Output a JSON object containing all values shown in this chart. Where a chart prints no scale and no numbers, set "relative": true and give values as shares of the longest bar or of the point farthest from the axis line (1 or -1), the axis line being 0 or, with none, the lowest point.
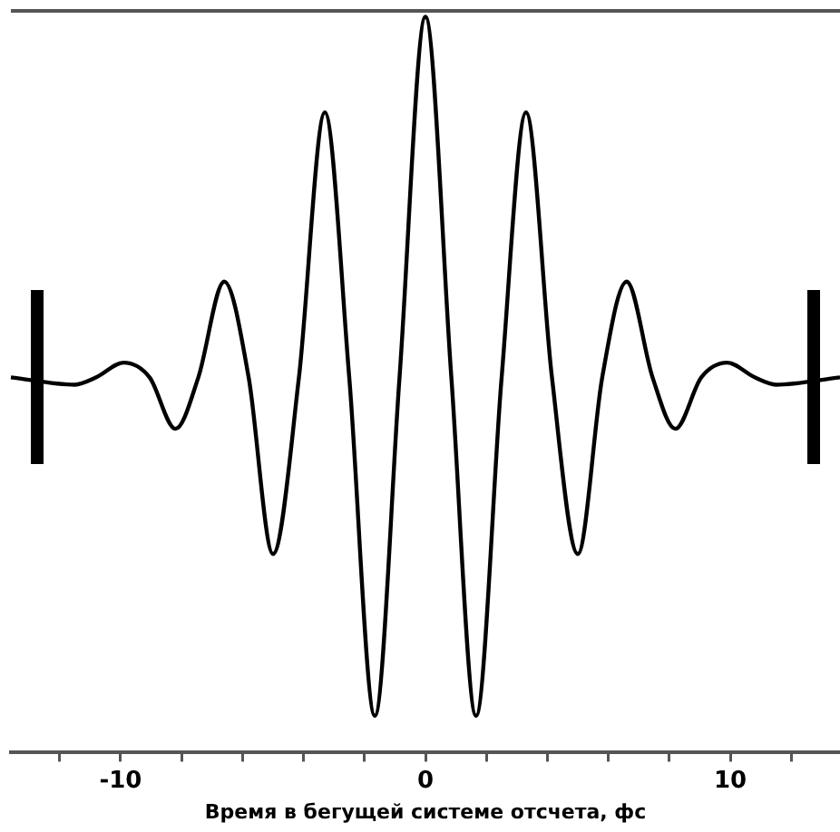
{
  "chart_data": {
    "type": "line",
    "xlabel": "Время в бегущей системе отсчета, фс",
    "relative": true,
    "xlim": [
      -13.6,
      13.6
    ],
    "xticks": [
      {
        "value": -12,
        "label": null
      },
      {
        "value": -10,
        "label": "-10"
      },
      {
        "value": -8,
        "label": null
      },
      {
        "value": -6,
        "label": null
      },
      {
        "value": -4,
        "label": null
      },
      {
        "value": -2,
        "label": null
      },
      {
        "value": 0,
        "label": "0"
      },
      {
        "value": 2,
        "label": null
      },
      {
        "value": 4,
        "label": null
      },
      {
        "value": 6,
        "label": null
      },
      {
        "value": 8,
        "label": null
      },
      {
        "value": 10,
        "label": "10"
      },
      {
        "value": 12,
        "label": null
      }
    ],
    "x": [
      -13.6,
      -11.5,
      -10.8,
      -9.9,
      -9.05,
      -8.2,
      -7.45,
      -6.6,
      -5.8,
      -5.0,
      -4.15,
      -3.3,
      -2.5,
      -1.66,
      -0.85,
      0,
      0.85,
      1.66,
      2.5,
      3.3,
      4.15,
      5.0,
      5.8,
      6.6,
      7.45,
      8.2,
      9.05,
      9.9,
      10.8,
      11.5,
      13.6
    ],
    "series": [
      {
        "color": "#000000",
        "values": [
          0.51,
          0.5,
          0.51,
          0.53,
          0.51,
          0.44,
          0.51,
          0.64,
          0.51,
          0.27,
          0.51,
          0.87,
          0.51,
          0.05,
          0.51,
          1,
          0.51,
          0.05,
          0.51,
          0.87,
          0.51,
          0.27,
          0.51,
          0.64,
          0.51,
          0.44,
          0.51,
          0.53,
          0.51,
          0.5,
          0.51
        ]
      }
    ]
  }
}
